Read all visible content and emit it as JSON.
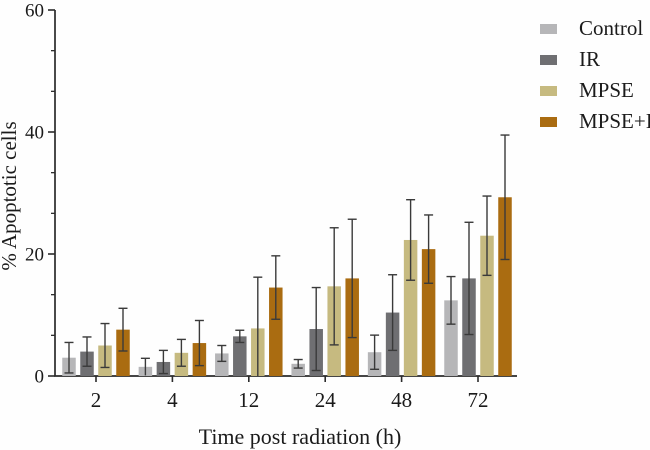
{
  "chart_data": {
    "type": "bar",
    "title": "",
    "xlabel": "Time post radiation (h)",
    "ylabel": "% Apoptotic cells",
    "categories": [
      "2",
      "4",
      "12",
      "24",
      "48",
      "72"
    ],
    "series": [
      {
        "name": "Control",
        "color": "#b6b6b8",
        "values": [
          3.0,
          1.5,
          3.7,
          2.0,
          3.9,
          12.4
        ],
        "errors": [
          2.5,
          1.4,
          1.3,
          0.7,
          2.8,
          3.9
        ]
      },
      {
        "name": "IR",
        "color": "#6f6f72",
        "values": [
          4.0,
          2.3,
          6.5,
          7.7,
          10.4,
          16.0
        ],
        "errors": [
          2.4,
          1.9,
          1.0,
          6.8,
          6.2,
          9.2
        ]
      },
      {
        "name": "MPSE",
        "color": "#c6ba80",
        "values": [
          5.0,
          3.8,
          7.8,
          14.7,
          22.3,
          23.0
        ],
        "errors": [
          3.6,
          2.2,
          8.4,
          9.6,
          6.6,
          6.5
        ]
      },
      {
        "name": "MPSE+IR",
        "color": "#aa6c11",
        "values": [
          7.6,
          5.4,
          14.5,
          16.0,
          20.8,
          29.3
        ],
        "errors": [
          3.5,
          3.7,
          5.2,
          9.7,
          5.6,
          10.2
        ]
      }
    ],
    "ylim": [
      0,
      60
    ],
    "yticks": [
      0,
      20,
      40,
      60
    ],
    "y_minor_divisions": 3,
    "grid": false,
    "error_bars": true,
    "legend_position": "top-right",
    "axis_color": "#2b2b2b",
    "error_bar_color": "#3a3a3a",
    "text_color": "#1a1a1a"
  }
}
